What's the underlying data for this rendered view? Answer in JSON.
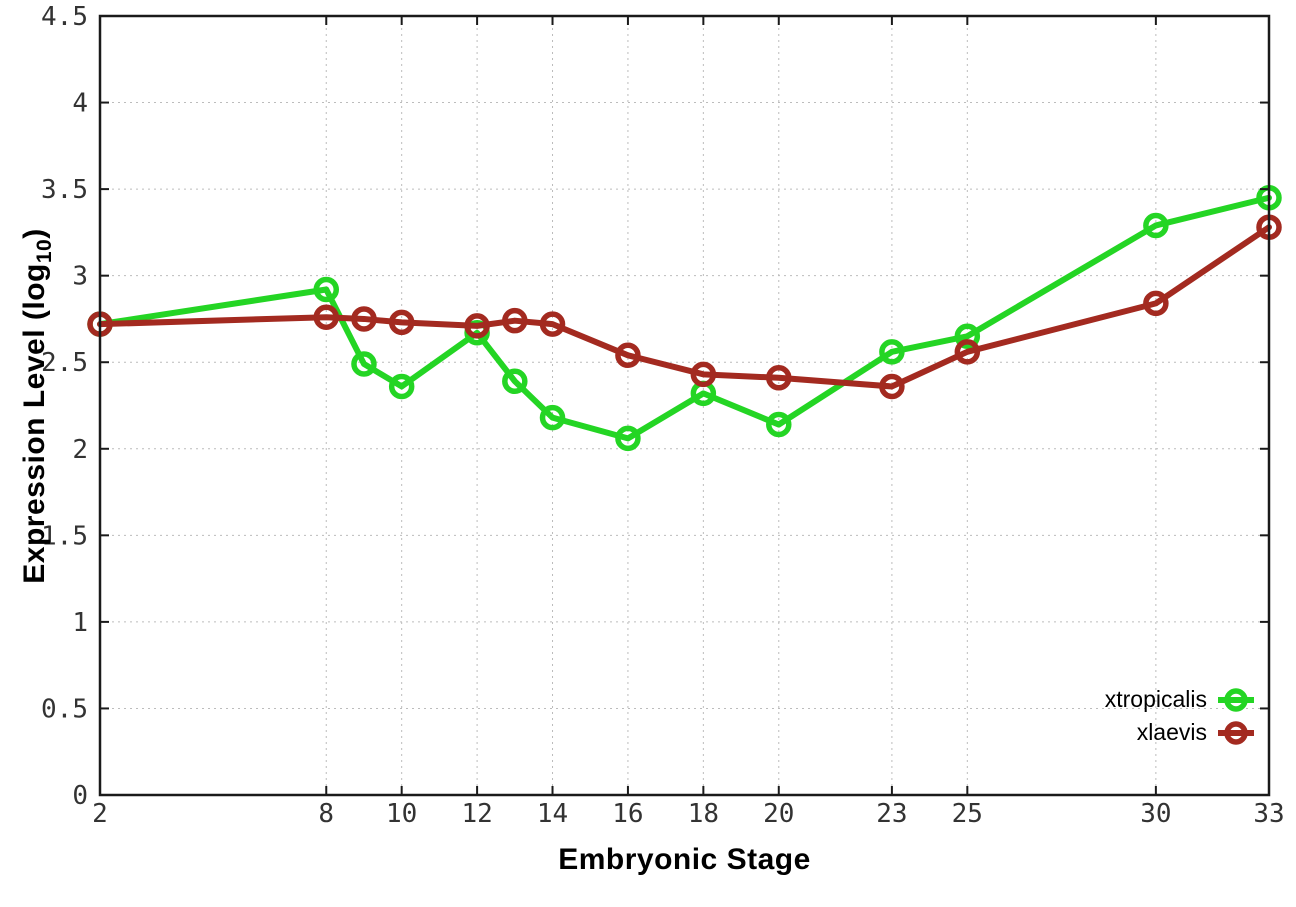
{
  "figure": {
    "background": "#ffffff"
  },
  "chart_data": {
    "type": "line",
    "title": "",
    "xlabel": "Embryonic Stage",
    "ylabel": {
      "text": "Expression Level (log10)",
      "prefix": "Expression Level (log",
      "subscript": "10",
      "suffix": ")"
    },
    "x": [
      2,
      8,
      9,
      10,
      12,
      13,
      14,
      16,
      18,
      20,
      23,
      25,
      30,
      33
    ],
    "series": [
      {
        "name": "xtropicalis",
        "color": "#24d524",
        "marker": "open-circle",
        "values": [
          2.72,
          2.92,
          2.49,
          2.36,
          2.67,
          2.39,
          2.18,
          2.06,
          2.32,
          2.14,
          2.56,
          2.65,
          3.29,
          3.45
        ]
      },
      {
        "name": "xlaevis",
        "color": "#a32a20",
        "marker": "open-circle",
        "values": [
          2.72,
          2.76,
          2.75,
          2.73,
          2.71,
          2.74,
          2.72,
          2.54,
          2.43,
          2.41,
          2.36,
          2.56,
          2.84,
          3.28
        ]
      }
    ],
    "xlim": [
      2,
      33
    ],
    "ylim": [
      0,
      4.5
    ],
    "x_ticks": [
      2,
      8,
      10,
      12,
      14,
      16,
      18,
      20,
      23,
      25,
      30,
      33
    ],
    "x_tick_labels": [
      "2",
      "8",
      "10",
      "12",
      "14",
      "16",
      "18",
      "20",
      "23",
      "25",
      "30",
      "33"
    ],
    "y_ticks": [
      0,
      0.5,
      1,
      1.5,
      2,
      2.5,
      3,
      3.5,
      4,
      4.5
    ],
    "y_tick_labels": [
      "0",
      "0.5",
      "1",
      "1.5",
      "2",
      "2.5",
      "3",
      "3.5",
      "4",
      "4.5"
    ],
    "grid": true,
    "legend_position": "bottom-right"
  },
  "colors": {
    "axis": "#1a1a1a",
    "tick_label": "#333333",
    "grid": "#bcbcbc"
  }
}
